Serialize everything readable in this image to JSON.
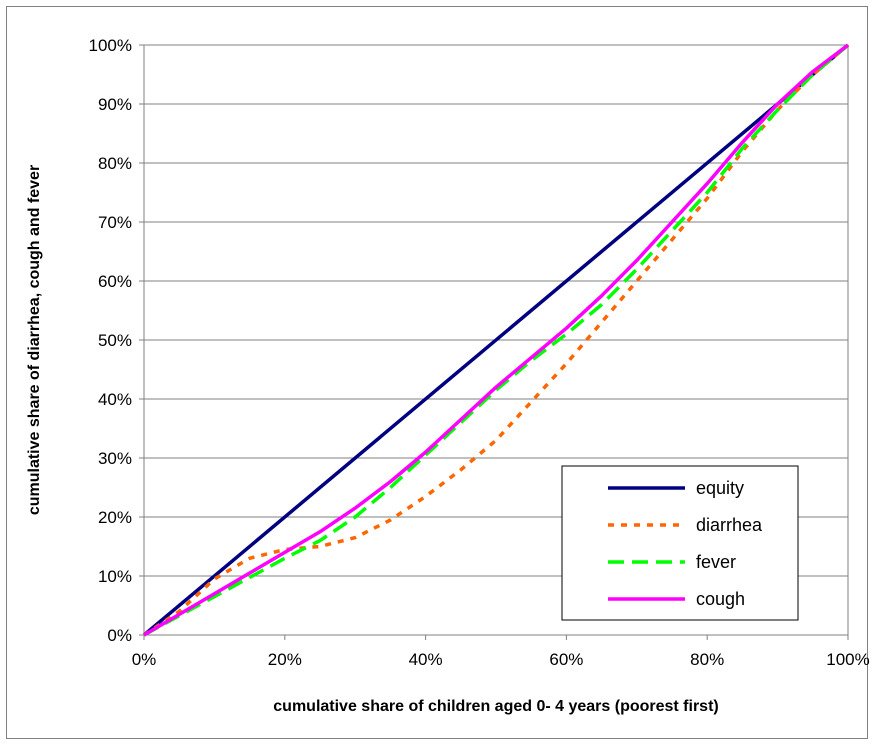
{
  "chart_data": {
    "type": "line",
    "title": "",
    "xlabel": "cumulative share of children aged 0- 4 years (poorest first)",
    "ylabel": "cumulative share of diarrhea, cough and fever",
    "xlim": [
      0,
      100
    ],
    "ylim": [
      0,
      100
    ],
    "x_ticks": [
      "0%",
      "20%",
      "40%",
      "60%",
      "80%",
      "100%"
    ],
    "y_ticks": [
      "0%",
      "10%",
      "20%",
      "30%",
      "40%",
      "50%",
      "60%",
      "70%",
      "80%",
      "90%",
      "100%"
    ],
    "grid": "horizontal",
    "legend_position": "bottom-right",
    "series": [
      {
        "name": "equity",
        "color": "#000080",
        "dash": "solid",
        "points": [
          [
            0,
            0
          ],
          [
            100,
            100
          ]
        ]
      },
      {
        "name": "diarrhea",
        "color": "#FF6600",
        "dash": "dotted",
        "points": [
          [
            0,
            0
          ],
          [
            5,
            4
          ],
          [
            10,
            9.5
          ],
          [
            15,
            13
          ],
          [
            20,
            14.5
          ],
          [
            25,
            15
          ],
          [
            30,
            16.5
          ],
          [
            35,
            19.5
          ],
          [
            40,
            23.5
          ],
          [
            45,
            28
          ],
          [
            50,
            33
          ],
          [
            55,
            39.5
          ],
          [
            60,
            46
          ],
          [
            65,
            53
          ],
          [
            70,
            60
          ],
          [
            75,
            67
          ],
          [
            80,
            74
          ],
          [
            85,
            82
          ],
          [
            90,
            89
          ],
          [
            95,
            95
          ],
          [
            100,
            100
          ]
        ]
      },
      {
        "name": "fever",
        "color": "#00FF00",
        "dash": "dashed",
        "points": [
          [
            0,
            0
          ],
          [
            10,
            6.5
          ],
          [
            20,
            13
          ],
          [
            25,
            16
          ],
          [
            30,
            20
          ],
          [
            35,
            25
          ],
          [
            40,
            30.5
          ],
          [
            45,
            36
          ],
          [
            50,
            41.5
          ],
          [
            55,
            46.5
          ],
          [
            60,
            51
          ],
          [
            65,
            56
          ],
          [
            70,
            62
          ],
          [
            75,
            68.5
          ],
          [
            80,
            75
          ],
          [
            85,
            82.5
          ],
          [
            90,
            89
          ],
          [
            95,
            95
          ],
          [
            100,
            100
          ]
        ]
      },
      {
        "name": "cough",
        "color": "#FF00FF",
        "dash": "solid",
        "points": [
          [
            0,
            0
          ],
          [
            10,
            7
          ],
          [
            20,
            14
          ],
          [
            25,
            17.5
          ],
          [
            30,
            21.5
          ],
          [
            35,
            26
          ],
          [
            40,
            31
          ],
          [
            45,
            36.5
          ],
          [
            50,
            42
          ],
          [
            55,
            47
          ],
          [
            60,
            52
          ],
          [
            65,
            57.5
          ],
          [
            70,
            63.5
          ],
          [
            75,
            70
          ],
          [
            80,
            76.5
          ],
          [
            85,
            83.5
          ],
          [
            90,
            90
          ],
          [
            95,
            95.5
          ],
          [
            100,
            100
          ]
        ]
      }
    ]
  }
}
